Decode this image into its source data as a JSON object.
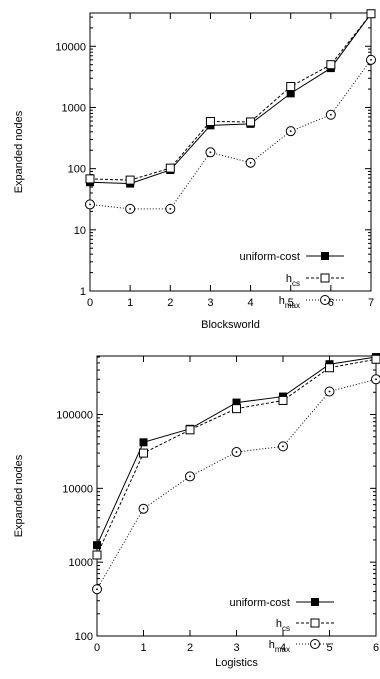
{
  "chart_data": [
    {
      "type": "line",
      "xlabel": "Blocksworld",
      "ylabel": "Expanded nodes",
      "log_y": true,
      "xlim": [
        0,
        7
      ],
      "ylim": [
        1,
        35000
      ],
      "x": [
        0,
        1,
        2,
        3,
        4,
        5,
        6,
        7
      ],
      "xticks": [
        0,
        1,
        2,
        3,
        4,
        5,
        6,
        7
      ],
      "yticks": [
        1,
        10,
        100,
        1000,
        10000
      ],
      "ytick_labels": [
        "1",
        "10",
        "100",
        "1000",
        "10000"
      ],
      "legend_position": "bottom-right",
      "series": [
        {
          "name": "uniform-cost",
          "name_sub": "",
          "style": "solid",
          "marker": "filled-square",
          "values": [
            60,
            57,
            95,
            510,
            540,
            1700,
            4400,
            34000
          ]
        },
        {
          "name": "h",
          "name_sub": "cs",
          "style": "dashed",
          "marker": "open-square",
          "values": [
            68,
            65,
            102,
            590,
            580,
            2200,
            5000,
            34000
          ]
        },
        {
          "name": "h",
          "name_sub": "max",
          "style": "dotted",
          "marker": "open-circle",
          "values": [
            26,
            22,
            22,
            185,
            125,
            410,
            760,
            6000
          ]
        }
      ]
    },
    {
      "type": "line",
      "xlabel": "Logistics",
      "ylabel": "Expanded nodes",
      "log_y": true,
      "xlim": [
        0,
        6
      ],
      "ylim": [
        100,
        620000
      ],
      "x": [
        0,
        1,
        2,
        3,
        4,
        5,
        6
      ],
      "xticks": [
        0,
        1,
        2,
        3,
        4,
        5,
        6
      ],
      "yticks": [
        100,
        1000,
        10000,
        100000
      ],
      "ytick_labels": [
        "100",
        "1000",
        "10000",
        "100000"
      ],
      "legend_position": "bottom-right",
      "series": [
        {
          "name": "uniform-cost",
          "name_sub": "",
          "style": "solid",
          "marker": "filled-square",
          "values": [
            1700,
            42000,
            64000,
            145000,
            175000,
            480000,
            600000
          ]
        },
        {
          "name": "h",
          "name_sub": "cs",
          "style": "dashed",
          "marker": "open-square",
          "values": [
            1250,
            30000,
            62000,
            120000,
            155000,
            430000,
            560000
          ]
        },
        {
          "name": "h",
          "name_sub": "max",
          "style": "dotted",
          "marker": "open-circle",
          "values": [
            430,
            5300,
            14500,
            31000,
            37000,
            205000,
            300000
          ]
        }
      ]
    }
  ]
}
